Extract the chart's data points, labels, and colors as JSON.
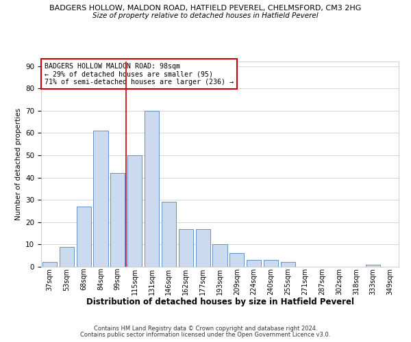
{
  "title1": "BADGERS HOLLOW, MALDON ROAD, HATFIELD PEVEREL, CHELMSFORD, CM3 2HG",
  "title2": "Size of property relative to detached houses in Hatfield Peverel",
  "xlabel": "Distribution of detached houses by size in Hatfield Peverel",
  "ylabel": "Number of detached properties",
  "categories": [
    "37sqm",
    "53sqm",
    "68sqm",
    "84sqm",
    "99sqm",
    "115sqm",
    "131sqm",
    "146sqm",
    "162sqm",
    "177sqm",
    "193sqm",
    "209sqm",
    "224sqm",
    "240sqm",
    "255sqm",
    "271sqm",
    "287sqm",
    "302sqm",
    "318sqm",
    "333sqm",
    "349sqm"
  ],
  "values": [
    2,
    9,
    27,
    61,
    42,
    50,
    70,
    29,
    17,
    17,
    10,
    6,
    3,
    3,
    2,
    0,
    0,
    0,
    0,
    1,
    0
  ],
  "bar_color": "#ccdaf0",
  "bar_edge_color": "#6090c8",
  "grid_color": "#d0d0d0",
  "vline_x": 4.5,
  "vline_color": "#cc0000",
  "annotation_text": "BADGERS HOLLOW MALDON ROAD: 98sqm\n← 29% of detached houses are smaller (95)\n71% of semi-detached houses are larger (236) →",
  "annotation_box_color": "#ffffff",
  "annotation_box_edge": "#cc0000",
  "footer1": "Contains HM Land Registry data © Crown copyright and database right 2024.",
  "footer2": "Contains public sector information licensed under the Open Government Licence v3.0.",
  "ylim": [
    0,
    92
  ],
  "yticks": [
    0,
    10,
    20,
    30,
    40,
    50,
    60,
    70,
    80,
    90
  ],
  "title1_fontsize": 8.0,
  "title2_fontsize": 7.5,
  "ylabel_fontsize": 7.5,
  "xlabel_fontsize": 8.5,
  "annot_fontsize": 7.2,
  "footer_fontsize": 6.0,
  "xtick_fontsize": 7.0,
  "ytick_fontsize": 7.5
}
